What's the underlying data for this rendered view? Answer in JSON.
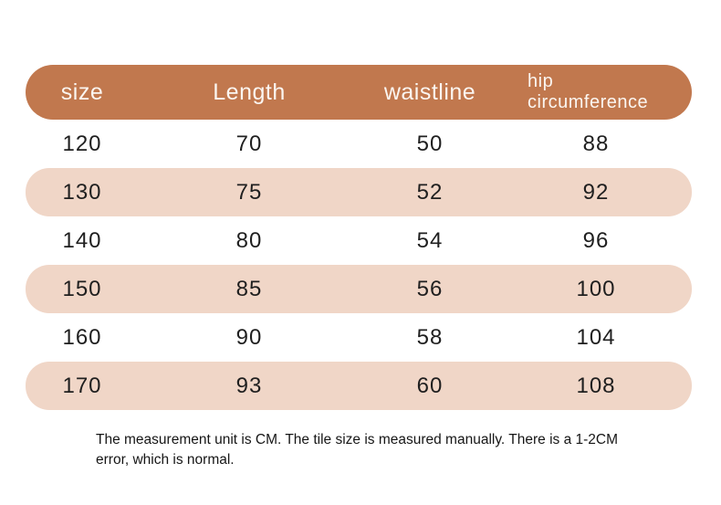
{
  "chart_data": {
    "type": "table",
    "columns": [
      "size",
      "Length",
      "waistline",
      "hip circumference"
    ],
    "rows": [
      [
        120,
        70,
        50,
        88
      ],
      [
        130,
        75,
        52,
        92
      ],
      [
        140,
        80,
        54,
        96
      ],
      [
        150,
        85,
        56,
        100
      ],
      [
        160,
        90,
        58,
        104
      ],
      [
        170,
        93,
        60,
        108
      ]
    ]
  },
  "note": {
    "text": "The measurement unit is CM. The tile size is measured manually. There is a 1-2CM error, which is normal."
  },
  "colors": {
    "header_bg": "#c1784e",
    "row_alt_bg": "#f0d6c7",
    "header_text": "#fbf6f1",
    "body_text": "#1f1f1f"
  }
}
